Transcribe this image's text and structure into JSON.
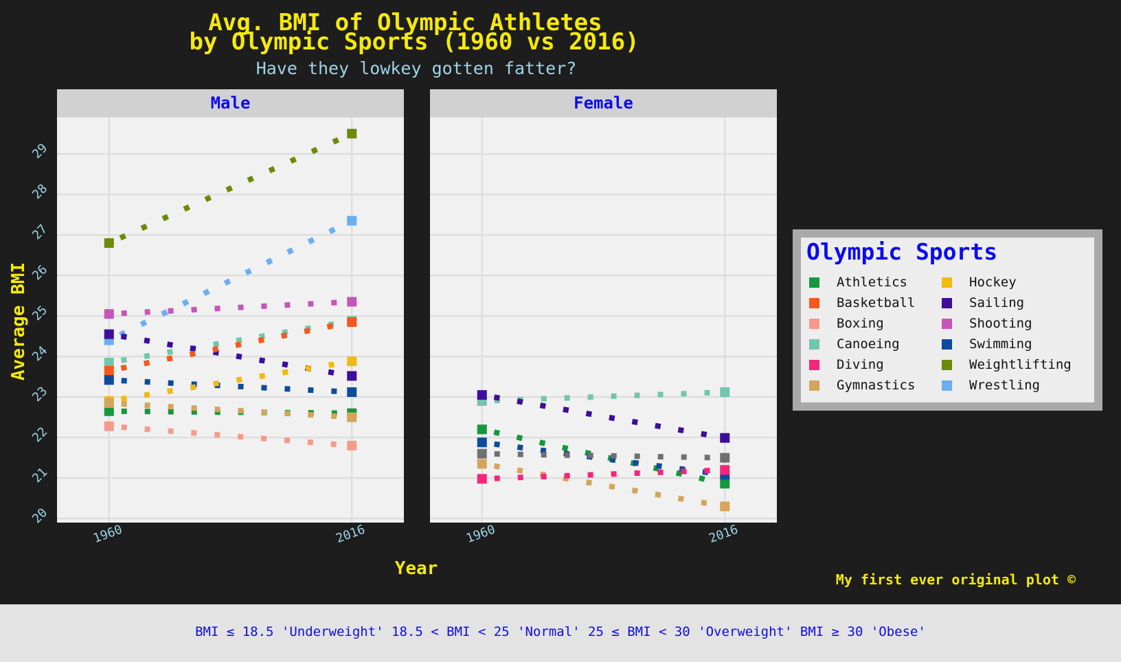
{
  "colors": {
    "background": "#1d1d1d",
    "panel": "#f1f1f1",
    "strip": "#d1d1d1",
    "grid": "#dedede",
    "title": "#f5e90a",
    "subtitle": "#9ed3e8",
    "accent_blue": "#0b0bf0",
    "legend_frame": "#a9a9a9",
    "legend_fill": "#ededed",
    "footer_bg": "#e3e3e3",
    "unlisted_series": "#707070"
  },
  "plot": {
    "title_line1": "Avg. BMI of Olympic Athletes",
    "title_line2": "by Olympic Sports (1960 vs 2016)",
    "subtitle": "Have they lowkey gotten fatter?",
    "xlabel": "Year",
    "ylabel": "Average BMI",
    "caption": "My first ever original plot ©",
    "footer_note": "BMI ≤ 18.5 'Underweight' 18.5 < BMI < 25 'Normal' 25 ≤ BMI < 30 'Overweight' BMI ≥ 30 'Obese'"
  },
  "legend": {
    "title": "Olympic Sports",
    "items": [
      {
        "label": "Athletics",
        "color": "#16973d"
      },
      {
        "label": "Basketball",
        "color": "#f4581c"
      },
      {
        "label": "Boxing",
        "color": "#f7998a"
      },
      {
        "label": "Canoeing",
        "color": "#72c6ad"
      },
      {
        "label": "Diving",
        "color": "#f4267a"
      },
      {
        "label": "Gymnastics",
        "color": "#d4a55a"
      },
      {
        "label": "Hockey",
        "color": "#f1b912"
      },
      {
        "label": "Sailing",
        "color": "#3c0e9a"
      },
      {
        "label": "Shooting",
        "color": "#c556b8"
      },
      {
        "label": "Swimming",
        "color": "#0e4b9b"
      },
      {
        "label": "Weightlifting",
        "color": "#6b8a06"
      },
      {
        "label": "Wrestling",
        "color": "#6aaef2"
      }
    ]
  },
  "chart_data": {
    "type": "scatter",
    "style": "dotted segments joining 1960 and 2016 values, faceted by sex",
    "x_ticks": [
      1960,
      2016
    ],
    "xlim": [
      1948,
      2028
    ],
    "ylim": [
      19.9,
      29.9
    ],
    "y_ticks": [
      20,
      21,
      22,
      23,
      24,
      25,
      26,
      27,
      28,
      29
    ],
    "grid": true,
    "legend_position": "right",
    "facets": [
      {
        "label": "Male",
        "series": [
          {
            "name": "Weightlifting",
            "values": [
              26.8,
              29.5
            ]
          },
          {
            "name": "Wrestling",
            "values": [
              24.4,
              27.35
            ]
          },
          {
            "name": "Shooting",
            "values": [
              25.05,
              25.35
            ]
          },
          {
            "name": "Canoeing",
            "values": [
              23.85,
              24.88
            ]
          },
          {
            "name": "Sailing",
            "values": [
              24.55,
              23.52
            ]
          },
          {
            "name": "Basketball",
            "values": [
              23.65,
              24.85
            ]
          },
          {
            "name": "Swimming",
            "values": [
              23.42,
              23.12
            ]
          },
          {
            "name": "Hockey",
            "values": [
              22.9,
              23.88
            ]
          },
          {
            "name": "Athletics",
            "values": [
              22.65,
              22.6
            ]
          },
          {
            "name": "Gymnastics",
            "values": [
              22.85,
              22.5
            ]
          },
          {
            "name": "Boxing",
            "values": [
              22.28,
              21.8
            ]
          }
        ]
      },
      {
        "label": "Female",
        "series": [
          {
            "name": "Canoeing",
            "values": [
              22.9,
              23.12
            ]
          },
          {
            "name": "Sailing",
            "values": [
              23.05,
              21.99
            ]
          },
          {
            "name": "Athletics",
            "values": [
              22.2,
              20.86
            ]
          },
          {
            "name": "Swimming",
            "values": [
              21.88,
              21.08
            ]
          },
          {
            "name": "",
            "values": [
              21.6,
              21.5
            ]
          },
          {
            "name": "Gymnastics",
            "values": [
              21.35,
              20.3
            ]
          },
          {
            "name": "Diving",
            "values": [
              20.98,
              21.2
            ]
          }
        ]
      }
    ]
  }
}
